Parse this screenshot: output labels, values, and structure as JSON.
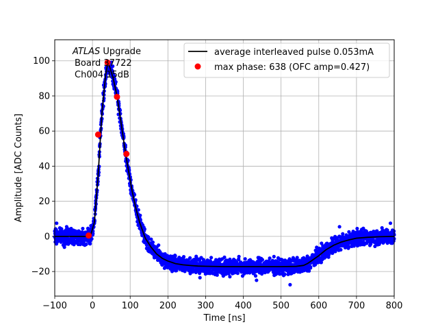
{
  "chart_data": {
    "type": "scatter",
    "xlabel": "Time [ns]",
    "ylabel": "Amplitude [ADC Counts]",
    "xlim": [
      -100,
      800
    ],
    "ylim": [
      -34,
      112
    ],
    "x_ticks": [
      -100,
      0,
      100,
      200,
      300,
      400,
      500,
      600,
      700,
      800
    ],
    "y_ticks": [
      -20,
      0,
      20,
      40,
      60,
      80,
      100
    ],
    "x_tick_labels": [
      "−100",
      "0",
      "100",
      "200",
      "300",
      "400",
      "500",
      "600",
      "700",
      "800"
    ],
    "y_tick_labels": [
      "−20",
      "0",
      "20",
      "40",
      "60",
      "80",
      "100"
    ],
    "grid": true,
    "legend_position": "top-right",
    "annotation": {
      "line1_italic": "ATLAS",
      "line1_rest": " Upgrade",
      "line2": "Board 37722",
      "line3": "Ch004 15dB"
    },
    "series": [
      {
        "name": "average interleaved pulse 0.053mA",
        "kind": "line",
        "color": "#000000",
        "x": [
          -100,
          -20,
          -5,
          5,
          15,
          25,
          35,
          40,
          45,
          55,
          65,
          75,
          85,
          95,
          105,
          115,
          125,
          140,
          155,
          170,
          185,
          200,
          220,
          240,
          260,
          280,
          300,
          350,
          400,
          450,
          500,
          540,
          560,
          570,
          580,
          590,
          600,
          610,
          620,
          640,
          660,
          680,
          700,
          730,
          760,
          800
        ],
        "y": [
          0,
          0,
          0.5,
          8,
          35,
          70,
          92,
          98,
          97,
          90,
          80,
          66,
          51,
          38,
          26,
          16,
          8,
          -1,
          -6,
          -10,
          -12.5,
          -14,
          -15.5,
          -16.2,
          -16.6,
          -16.9,
          -17,
          -17.2,
          -17.2,
          -17.2,
          -17.2,
          -17.1,
          -16.5,
          -15.5,
          -14,
          -12.5,
          -11,
          -9.2,
          -7.5,
          -5,
          -3.2,
          -2,
          -1,
          -0.5,
          -0.2,
          0
        ]
      },
      {
        "name": "max phase: 638 (OFC amp=0.427)",
        "kind": "points",
        "color": "#ff0000",
        "x": [
          -10,
          15,
          40,
          65,
          90
        ],
        "y": [
          0.5,
          58,
          99,
          79.5,
          47
        ]
      },
      {
        "name": "",
        "kind": "scatter-band",
        "color": "#0000ff",
        "noise_amplitude": 3.5
      }
    ]
  }
}
